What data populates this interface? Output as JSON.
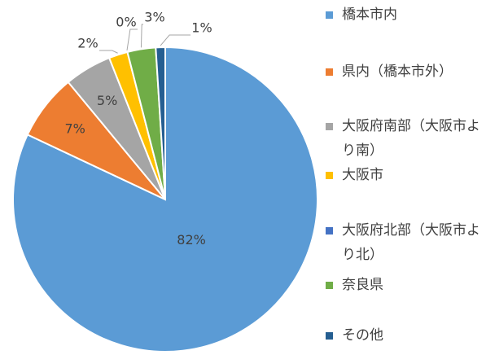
{
  "chart_data": {
    "type": "pie",
    "categories": [
      "橋本市内",
      "県内（橋本市外）",
      "大阪府南部（大阪市より南）",
      "大阪市",
      "大阪府北部（大阪市より北）",
      "奈良県",
      "その他"
    ],
    "values": [
      82,
      7,
      5,
      2,
      0,
      3,
      1
    ],
    "value_labels": [
      "82%",
      "7%",
      "5%",
      "2%",
      "0%",
      "3%",
      "1%"
    ],
    "colors": [
      "#5b9bd5",
      "#ed7d31",
      "#a5a5a5",
      "#ffc000",
      "#4472c4",
      "#70ad47",
      "#255e91"
    ]
  }
}
